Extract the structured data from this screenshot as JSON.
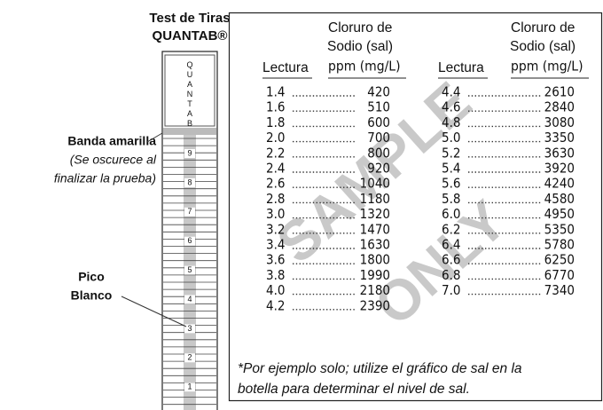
{
  "strip": {
    "title": "Test de Tiras",
    "brand": "QUANTAB®",
    "label": "QUANTAB",
    "scale": [
      "9",
      "8",
      "7",
      "6",
      "5",
      "4",
      "3",
      "2",
      "1"
    ]
  },
  "callouts": {
    "band": {
      "title": "Banda amarilla",
      "note": [
        "(Se oscurece al",
        "finalizar la prueba)"
      ]
    },
    "peak": [
      "Pico",
      "Blanco"
    ]
  },
  "table": {
    "header": {
      "measure": [
        "Cloruro de",
        "Sodio (sal)"
      ],
      "reading": "Lectura",
      "unit": "ppm (mg/L)"
    },
    "left": [
      [
        "1.4",
        "420"
      ],
      [
        "1.6",
        "510"
      ],
      [
        "1.8",
        "600"
      ],
      [
        "2.0",
        "700"
      ],
      [
        "2.2",
        "800"
      ],
      [
        "2.4",
        "920"
      ],
      [
        "2.6",
        "1040"
      ],
      [
        "2.8",
        "1180"
      ],
      [
        "3.0",
        "1320"
      ],
      [
        "3.2",
        "1470"
      ],
      [
        "3.4",
        "1630"
      ],
      [
        "3.6",
        "1800"
      ],
      [
        "3.8",
        "1990"
      ],
      [
        "4.0",
        "2180"
      ],
      [
        "4.2",
        "2390"
      ]
    ],
    "right": [
      [
        "4.4",
        "2610"
      ],
      [
        "4.6",
        "2840"
      ],
      [
        "4.8",
        "3080"
      ],
      [
        "5.0",
        "3350"
      ],
      [
        "5.2",
        "3630"
      ],
      [
        "5.4",
        "3920"
      ],
      [
        "5.6",
        "4240"
      ],
      [
        "5.8",
        "4580"
      ],
      [
        "6.0",
        "4950"
      ],
      [
        "6.2",
        "5350"
      ],
      [
        "6.4",
        "5780"
      ],
      [
        "6.6",
        "6250"
      ],
      [
        "6.8",
        "6770"
      ],
      [
        "7.0",
        "7340"
      ]
    ],
    "footnote": [
      "*Por ejemplo solo; utilize el gráfico de sal en la",
      "botella para determinar el nivel de sal."
    ]
  },
  "watermark": [
    "SAMPLE",
    "ONLY"
  ]
}
